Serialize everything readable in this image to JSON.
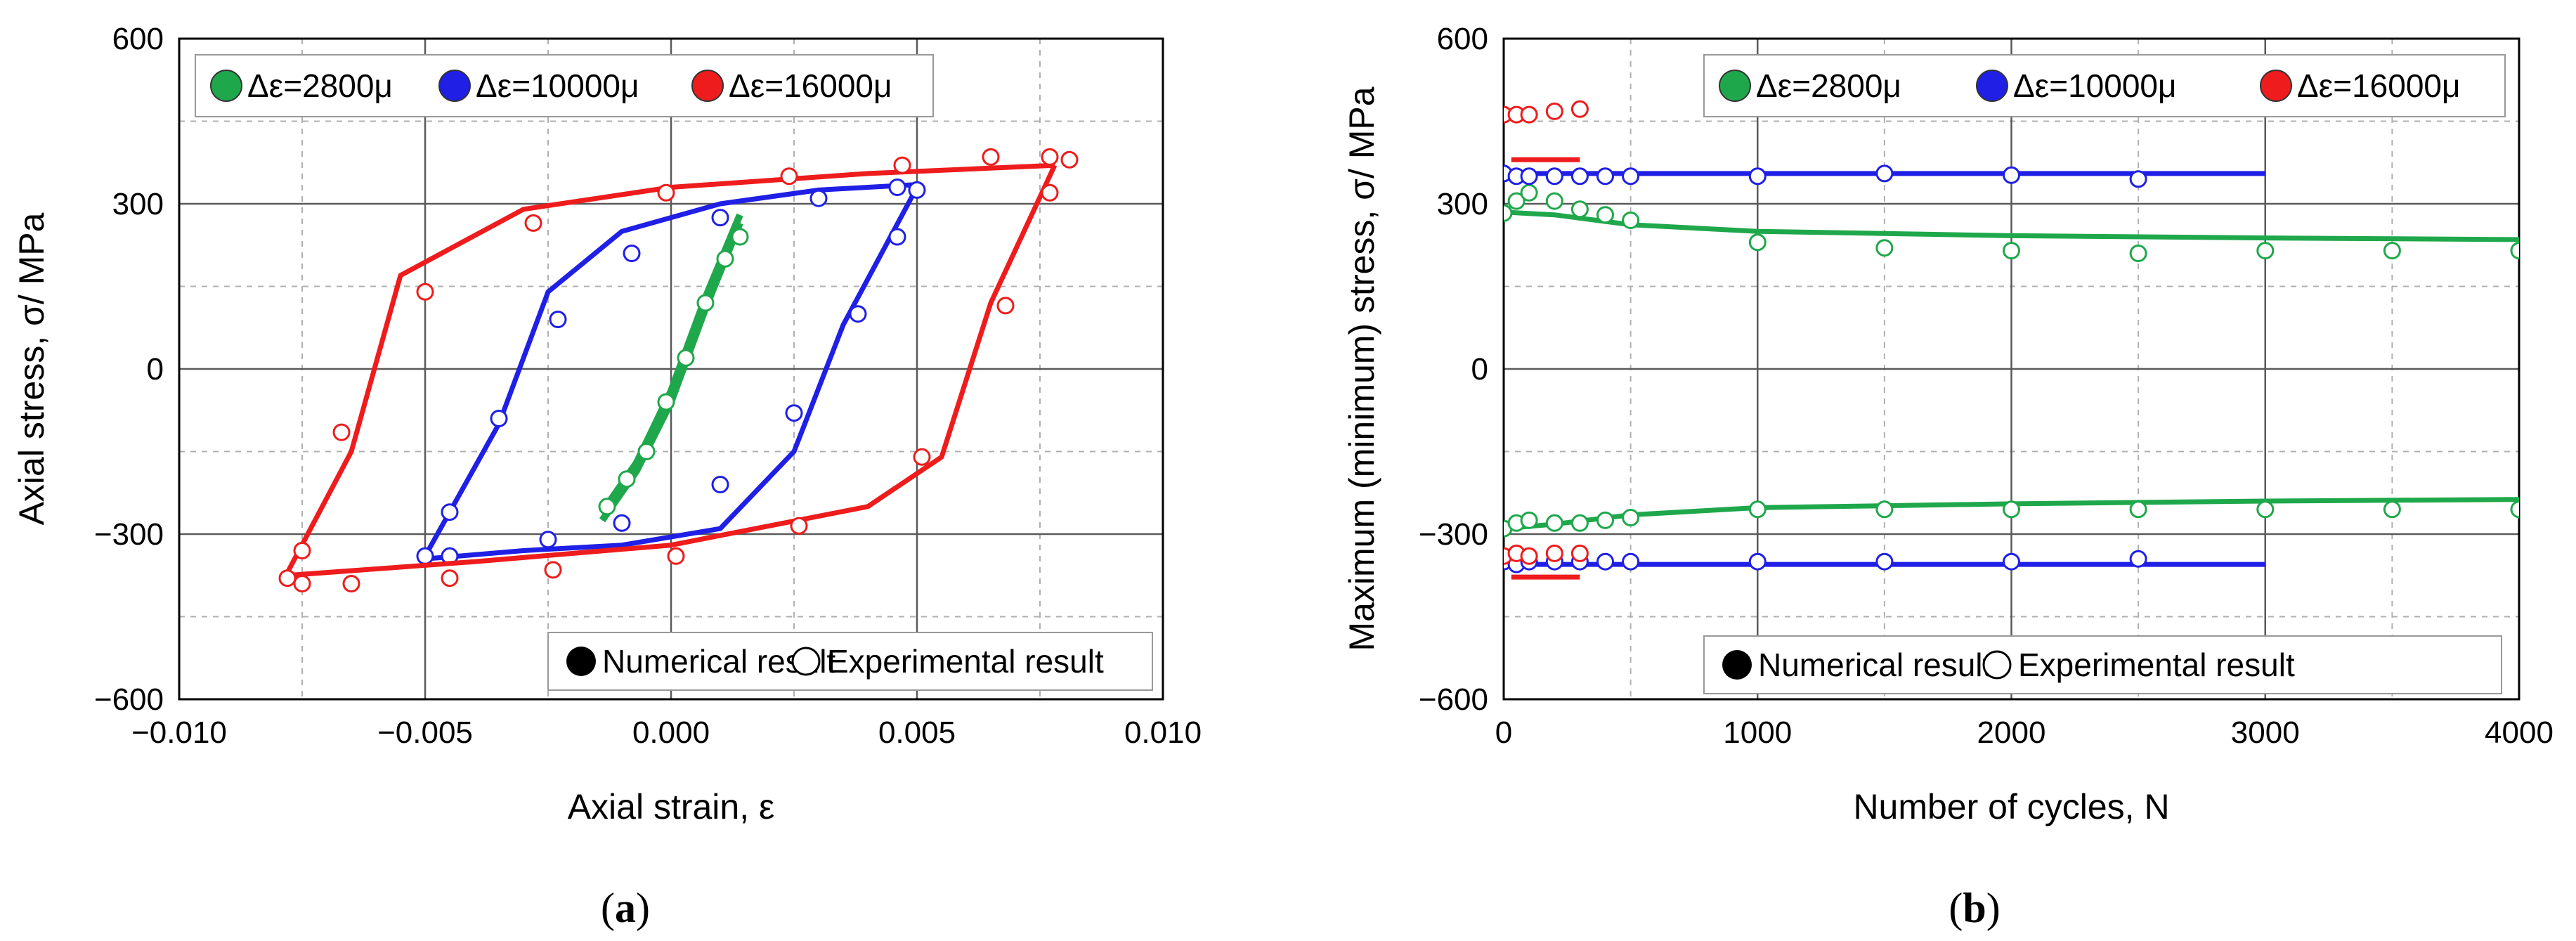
{
  "colors": {
    "green": "#1fa84b",
    "blue": "#1f1fe6",
    "red": "#ee1c1c",
    "grid": "#b0b0b0",
    "gridMajor": "#5a5a5a"
  },
  "chart_data": [
    {
      "id": "a",
      "type": "scatter",
      "caption": {
        "pre": "(",
        "bold": "a",
        "post": ")"
      },
      "xlabel": "Axial strain, ε",
      "ylabel": "Axial stress, σ/ MPa",
      "xlim": [
        -0.01,
        0.01
      ],
      "ylim": [
        -600,
        600
      ],
      "xticks": [
        "-0.010",
        "-0.005",
        "0.000",
        "0.005",
        "0.010"
      ],
      "yticks": [
        "-600",
        "-300",
        "0",
        "300",
        "600"
      ],
      "legend_series": [
        {
          "label": "Δε=2800μ",
          "color": "green"
        },
        {
          "label": "Δε=10000μ",
          "color": "blue"
        },
        {
          "label": "Δε=16000μ",
          "color": "red"
        }
      ],
      "legend_style": {
        "filled": "Numerical result",
        "open": "Experimental result"
      },
      "series": [
        {
          "name": "Δε=2800μ",
          "color": "green",
          "numerical_upper": [
            [
              -0.0014,
              -260
            ],
            [
              -0.0007,
              -170
            ],
            [
              0.0,
              -40
            ],
            [
              0.0007,
              130
            ],
            [
              0.0014,
              280
            ]
          ],
          "numerical_lower": [
            [
              -0.0014,
              -275
            ],
            [
              -0.0007,
              -185
            ],
            [
              0.0,
              -60
            ],
            [
              0.0007,
              110
            ],
            [
              0.0014,
              265
            ]
          ],
          "experimental": [
            [
              -0.0013,
              -250
            ],
            [
              -0.0009,
              -200
            ],
            [
              -0.0005,
              -150
            ],
            [
              -0.0001,
              -60
            ],
            [
              0.0003,
              20
            ],
            [
              0.0007,
              120
            ],
            [
              0.0011,
              200
            ],
            [
              0.0014,
              240
            ]
          ]
        },
        {
          "name": "Δε=10000μ",
          "color": "blue",
          "numerical_upper": [
            [
              -0.005,
              -340
            ],
            [
              -0.0035,
              -100
            ],
            [
              -0.0025,
              140
            ],
            [
              -0.001,
              250
            ],
            [
              0.001,
              300
            ],
            [
              0.003,
              325
            ],
            [
              0.005,
              335
            ]
          ],
          "numerical_lower": [
            [
              -0.005,
              -345
            ],
            [
              -0.003,
              -330
            ],
            [
              -0.001,
              -320
            ],
            [
              0.001,
              -290
            ],
            [
              0.0025,
              -150
            ],
            [
              0.0035,
              80
            ],
            [
              0.005,
              330
            ]
          ],
          "experimental": [
            [
              -0.005,
              -340
            ],
            [
              -0.0045,
              -260
            ],
            [
              -0.0035,
              -90
            ],
            [
              -0.0023,
              90
            ],
            [
              -0.0008,
              210
            ],
            [
              0.001,
              275
            ],
            [
              0.003,
              310
            ],
            [
              0.0046,
              330
            ],
            [
              0.005,
              325
            ],
            [
              0.0046,
              240
            ],
            [
              0.0038,
              100
            ],
            [
              0.0025,
              -80
            ],
            [
              0.001,
              -210
            ],
            [
              -0.001,
              -280
            ],
            [
              -0.0025,
              -310
            ],
            [
              -0.0045,
              -340
            ]
          ]
        },
        {
          "name": "Δε=16000μ",
          "color": "red",
          "numerical_upper": [
            [
              -0.0078,
              -370
            ],
            [
              -0.0065,
              -150
            ],
            [
              -0.0055,
              170
            ],
            [
              -0.003,
              290
            ],
            [
              0.0,
              330
            ],
            [
              0.004,
              355
            ],
            [
              0.0078,
              370
            ]
          ],
          "numerical_lower": [
            [
              -0.0078,
              -375
            ],
            [
              -0.004,
              -350
            ],
            [
              0.0,
              -320
            ],
            [
              0.004,
              -250
            ],
            [
              0.0055,
              -160
            ],
            [
              0.0065,
              120
            ],
            [
              0.0078,
              370
            ]
          ],
          "experimental": [
            [
              -0.0078,
              -380
            ],
            [
              -0.0075,
              -390
            ],
            [
              -0.0065,
              -390
            ],
            [
              -0.0067,
              -115
            ],
            [
              -0.005,
              140
            ],
            [
              -0.0028,
              265
            ],
            [
              -0.0001,
              320
            ],
            [
              0.0024,
              350
            ],
            [
              0.0047,
              370
            ],
            [
              0.0065,
              385
            ],
            [
              0.0077,
              385
            ],
            [
              0.0081,
              380
            ],
            [
              0.0077,
              320
            ],
            [
              0.0068,
              115
            ],
            [
              0.0051,
              -160
            ],
            [
              0.0026,
              -285
            ],
            [
              0.0001,
              -340
            ],
            [
              -0.0024,
              -365
            ],
            [
              -0.0045,
              -380
            ],
            [
              -0.0075,
              -330
            ]
          ]
        }
      ]
    },
    {
      "id": "b",
      "type": "scatter",
      "caption": {
        "pre": "(",
        "bold": "b",
        "post": ")"
      },
      "xlabel": "Number of cycles, N",
      "ylabel": "Maximum (minimum) stress, σ/ MPa",
      "xlim": [
        0,
        4000
      ],
      "ylim": [
        -600,
        600
      ],
      "xticks": [
        "0",
        "1000",
        "2000",
        "3000",
        "4000"
      ],
      "yticks": [
        "-600",
        "-300",
        "0",
        "300",
        "600"
      ],
      "legend_series": [
        {
          "label": "Δε=2800μ",
          "color": "green"
        },
        {
          "label": "Δε=10000μ",
          "color": "blue"
        },
        {
          "label": "Δε=16000μ",
          "color": "red"
        }
      ],
      "legend_style": {
        "filled": "Numerical result",
        "open": "Experimental result"
      },
      "series": [
        {
          "name": "Δε=2800μ max",
          "color": "green",
          "numerical": [
            [
              0,
              285
            ],
            [
              200,
              280
            ],
            [
              500,
              262
            ],
            [
              1000,
              250
            ],
            [
              2000,
              242
            ],
            [
              3000,
              238
            ],
            [
              4000,
              235
            ]
          ],
          "experimental": [
            [
              0,
              283
            ],
            [
              50,
              305
            ],
            [
              100,
              320
            ],
            [
              200,
              305
            ],
            [
              300,
              290
            ],
            [
              400,
              280
            ],
            [
              500,
              270
            ],
            [
              1000,
              230
            ],
            [
              1500,
              220
            ],
            [
              2000,
              215
            ],
            [
              2500,
              210
            ],
            [
              3000,
              215
            ],
            [
              3500,
              215
            ],
            [
              4000,
              215
            ]
          ]
        },
        {
          "name": "Δε=2800μ min",
          "color": "green",
          "numerical": [
            [
              0,
              -290
            ],
            [
              200,
              -282
            ],
            [
              500,
              -265
            ],
            [
              1000,
              -252
            ],
            [
              2000,
              -245
            ],
            [
              3000,
              -240
            ],
            [
              4000,
              -237
            ]
          ],
          "experimental": [
            [
              0,
              -290
            ],
            [
              50,
              -280
            ],
            [
              100,
              -275
            ],
            [
              200,
              -280
            ],
            [
              300,
              -280
            ],
            [
              400,
              -275
            ],
            [
              500,
              -270
            ],
            [
              1000,
              -255
            ],
            [
              1500,
              -255
            ],
            [
              2000,
              -255
            ],
            [
              2500,
              -255
            ],
            [
              3000,
              -255
            ],
            [
              3500,
              -255
            ],
            [
              4000,
              -255
            ]
          ]
        },
        {
          "name": "Δε=10000μ max",
          "color": "blue",
          "numerical": [
            [
              0,
              355
            ],
            [
              3000,
              355
            ]
          ],
          "experimental": [
            [
              0,
              355
            ],
            [
              50,
              350
            ],
            [
              100,
              350
            ],
            [
              200,
              350
            ],
            [
              300,
              350
            ],
            [
              400,
              350
            ],
            [
              500,
              350
            ],
            [
              1000,
              350
            ],
            [
              1500,
              355
            ],
            [
              2000,
              352
            ],
            [
              2500,
              345
            ]
          ]
        },
        {
          "name": "Δε=10000μ min",
          "color": "blue",
          "numerical": [
            [
              0,
              -355
            ],
            [
              3000,
              -355
            ]
          ],
          "experimental": [
            [
              0,
              -350
            ],
            [
              50,
              -355
            ],
            [
              100,
              -350
            ],
            [
              200,
              -350
            ],
            [
              300,
              -350
            ],
            [
              400,
              -350
            ],
            [
              500,
              -350
            ],
            [
              1000,
              -350
            ],
            [
              1500,
              -350
            ],
            [
              2000,
              -350
            ],
            [
              2500,
              -345
            ]
          ]
        },
        {
          "name": "Δε=16000μ max",
          "color": "red",
          "numerical": [
            [
              30,
              380
            ],
            [
              300,
              380
            ]
          ],
          "experimental": [
            [
              0,
              462
            ],
            [
              50,
              462
            ],
            [
              100,
              462
            ],
            [
              200,
              468
            ],
            [
              300,
              472
            ]
          ]
        },
        {
          "name": "Δε=16000μ min",
          "color": "red",
          "numerical": [
            [
              30,
              -378
            ],
            [
              300,
              -378
            ]
          ],
          "experimental": [
            [
              0,
              -340
            ],
            [
              50,
              -335
            ],
            [
              100,
              -340
            ],
            [
              200,
              -335
            ],
            [
              300,
              -335
            ]
          ]
        }
      ]
    }
  ]
}
